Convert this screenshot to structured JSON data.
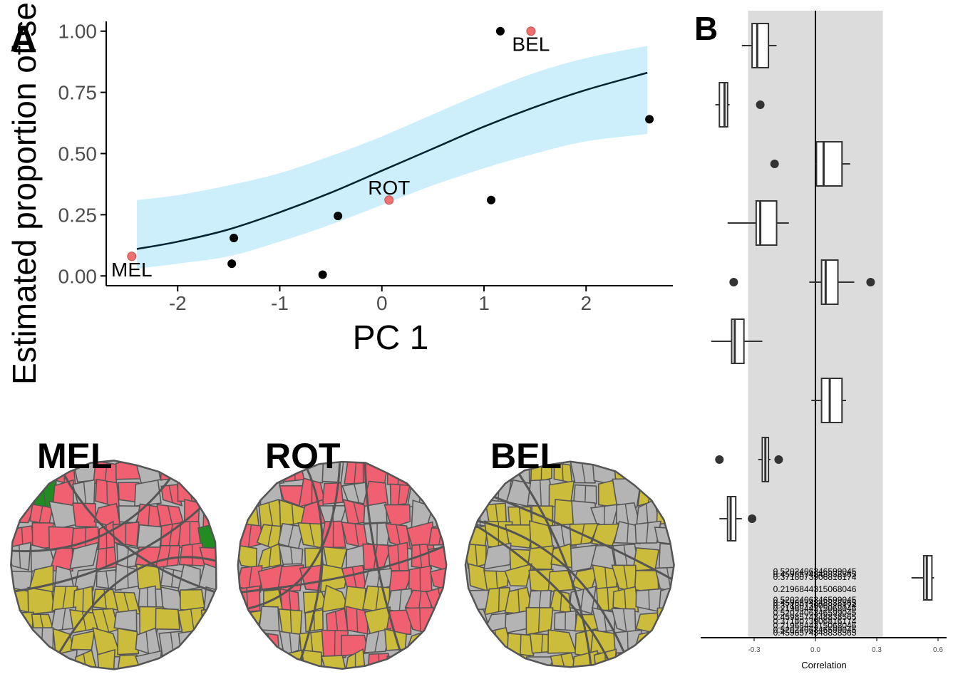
{
  "chart_data": [
    {
      "panel": "A",
      "type": "scatter",
      "ylabel": "Estimated proportion of se",
      "xlabel": "PC 1",
      "xlim": [
        -2.7,
        2.85
      ],
      "ylim": [
        -0.04,
        1.04
      ],
      "x_ticks": [
        -2,
        -1,
        0,
        1,
        2
      ],
      "x_tick_labels": [
        "-2",
        "-1",
        "0",
        "1",
        "2"
      ],
      "y_ticks": [
        0,
        0.25,
        0.5,
        0.75,
        1.0
      ],
      "y_tick_labels": [
        "0.00",
        "0.25",
        "0.50",
        "0.75",
        "1.00"
      ],
      "points": [
        {
          "x": -2.45,
          "y": 0.08,
          "highlight": true,
          "label": "MEL"
        },
        {
          "x": -1.47,
          "y": 0.05,
          "highlight": false,
          "label": ""
        },
        {
          "x": -1.45,
          "y": 0.155,
          "highlight": false,
          "label": ""
        },
        {
          "x": -0.58,
          "y": 0.005,
          "highlight": false,
          "label": ""
        },
        {
          "x": -0.43,
          "y": 0.245,
          "highlight": false,
          "label": ""
        },
        {
          "x": 0.07,
          "y": 0.31,
          "highlight": true,
          "label": "ROT"
        },
        {
          "x": 1.07,
          "y": 0.31,
          "highlight": false,
          "label": ""
        },
        {
          "x": 1.16,
          "y": 1.0,
          "highlight": false,
          "label": ""
        },
        {
          "x": 1.46,
          "y": 1.0,
          "highlight": true,
          "label": "BEL"
        },
        {
          "x": 2.62,
          "y": 0.64,
          "highlight": false,
          "label": ""
        }
      ],
      "fit": {
        "x": [
          -2.4,
          -2.0,
          -1.5,
          -1.0,
          -0.5,
          0.0,
          0.5,
          1.0,
          1.5,
          2.0,
          2.6
        ],
        "y": [
          0.11,
          0.14,
          0.19,
          0.26,
          0.34,
          0.43,
          0.52,
          0.61,
          0.69,
          0.76,
          0.83
        ],
        "lower": [
          0.03,
          0.05,
          0.08,
          0.14,
          0.21,
          0.29,
          0.37,
          0.44,
          0.5,
          0.55,
          0.58
        ],
        "upper": [
          0.31,
          0.33,
          0.37,
          0.42,
          0.49,
          0.57,
          0.66,
          0.75,
          0.83,
          0.89,
          0.94
        ]
      }
    },
    {
      "panel": "B",
      "type": "box",
      "xlabel": "Correlation",
      "xlim": [
        -0.55,
        0.65
      ],
      "x_ticks": [
        -0.3,
        0,
        0.3,
        0.6
      ],
      "x_tick_labels": [
        "-0.3",
        "0.0",
        "0.3",
        "0.6"
      ],
      "shaded_range": [
        -0.33,
        0.33
      ],
      "boxes": [
        {
          "min": -0.36,
          "q1": -0.31,
          "median": -0.285,
          "q3": -0.23,
          "max": -0.19,
          "outliers": []
        },
        {
          "min": -0.49,
          "q1": -0.47,
          "median": -0.445,
          "q3": -0.43,
          "max": -0.42,
          "outliers": [
            -0.27
          ]
        },
        {
          "min": null,
          "q1": null,
          "median": null,
          "q3": null,
          "max": null,
          "outliers": [
            -0.2
          ]
        },
        {
          "min": 0.0,
          "q1": 0.005,
          "median": 0.04,
          "q3": 0.13,
          "max": 0.17,
          "outliers": []
        },
        {
          "min": -0.43,
          "q1": -0.29,
          "median": -0.27,
          "q3": -0.19,
          "max": -0.13,
          "outliers": []
        },
        {
          "min": null,
          "q1": null,
          "median": null,
          "q3": null,
          "max": null,
          "outliers": [
            -0.4
          ]
        },
        {
          "min": -0.03,
          "q1": 0.03,
          "median": 0.05,
          "q3": 0.11,
          "max": 0.19,
          "outliers": [
            0.27
          ]
        },
        {
          "min": -0.51,
          "q1": -0.41,
          "median": -0.395,
          "q3": -0.35,
          "max": -0.26,
          "outliers": []
        },
        {
          "min": -0.02,
          "q1": 0.03,
          "median": 0.07,
          "q3": 0.13,
          "max": 0.15,
          "outliers": []
        },
        {
          "min": -0.28,
          "q1": -0.26,
          "median": -0.245,
          "q3": -0.23,
          "max": -0.22,
          "outliers": [
            -0.47,
            -0.18
          ]
        },
        {
          "min": -0.47,
          "q1": -0.43,
          "median": -0.415,
          "q3": -0.39,
          "max": -0.36,
          "outliers": [
            -0.31
          ]
        },
        {
          "min": 0.47,
          "q1": 0.53,
          "median": 0.545,
          "q3": 0.57,
          "max": 0.58,
          "outliers": []
        }
      ],
      "value_labels": [
        "0.5202406346599045",
        "0.4598574348838565",
        "0.3718073906816174",
        "0.2196844315068046"
      ]
    }
  ],
  "maps": [
    {
      "title": "MEL"
    },
    {
      "title": "ROT"
    },
    {
      "title": "BEL"
    }
  ],
  "colors": {
    "point": "#000000",
    "highlight_point": "#f07070",
    "ribbon": "#cceffb",
    "fit_line": "#002233",
    "axis_text": "#4d4d4d",
    "shade": "#dcdcdc",
    "box_stroke": "#333333",
    "map_red": "#f06070",
    "map_yellow": "#ccbc3c",
    "map_grey": "#b4b4b4",
    "map_green": "#228b22",
    "map_border": "#555555"
  },
  "panel_labels": [
    "A",
    "B"
  ]
}
